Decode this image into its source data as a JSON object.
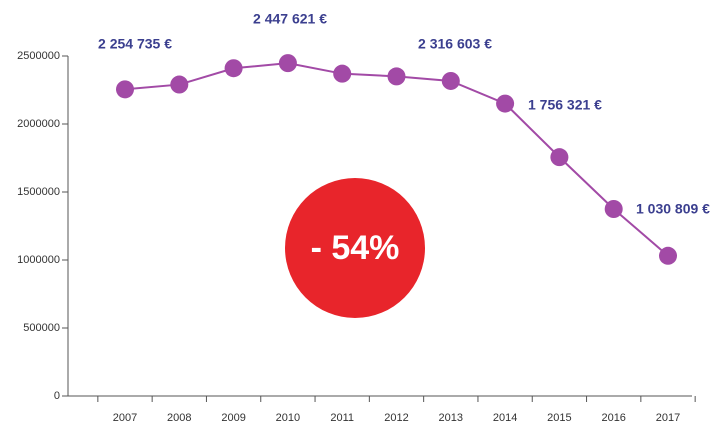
{
  "chart_data": {
    "type": "line",
    "categories": [
      "2007",
      "2008",
      "2009",
      "2010",
      "2011",
      "2012",
      "2013",
      "2014",
      "2015",
      "2016",
      "2017"
    ],
    "series": [
      {
        "color": "#a24aa6",
        "values": [
          2254735,
          2290000,
          2410000,
          2447621,
          2370000,
          2350000,
          2316603,
          2150000,
          1756321,
          1375000,
          1030809
        ],
        "value_labels": [
          "2 254 735 €",
          null,
          null,
          "2 447 621 €",
          null,
          null,
          "2 316 603 €",
          null,
          "1 756 321 €",
          null,
          "1 030 809 €"
        ]
      }
    ],
    "ylim": [
      0,
      2500000
    ],
    "yticks": [
      0,
      500000,
      1000000,
      1500000,
      2000000,
      2500000
    ],
    "annotation": "- 54%",
    "annotation_color": "#e8252b"
  }
}
